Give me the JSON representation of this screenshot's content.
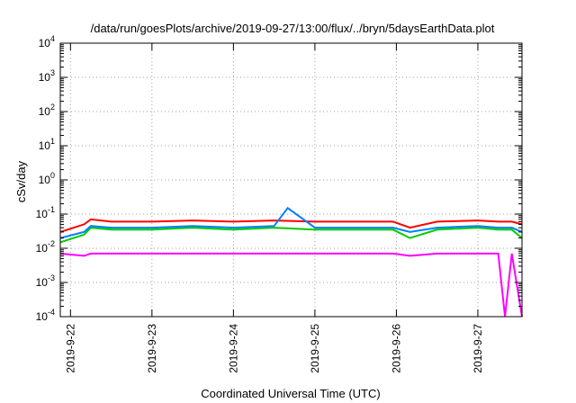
{
  "chart_data": {
    "type": "line",
    "title": "/data/run/goesPlots/archive/2019-09-27/13:00/flux/../bryn/5daysEarthData.plot",
    "xlabel": "Coordinated Universal Time (UTC)",
    "ylabel": "cSv/day",
    "yscale": "log",
    "ylim": [
      0.0001,
      10000
    ],
    "xlim": [
      "2019-09-21 21:00",
      "2019-09-27 13:00"
    ],
    "grid": true,
    "legend": "none",
    "x_ticks": [
      "2019-9-22",
      "2019-9-23",
      "2019-9-24",
      "2019-9-25",
      "2019-9-26",
      "2019-9-27"
    ],
    "y_ticks": [
      {
        "value": 0.0001,
        "base": "10",
        "exp": "-4"
      },
      {
        "value": 0.001,
        "base": "10",
        "exp": "-3"
      },
      {
        "value": 0.01,
        "base": "10",
        "exp": "-2"
      },
      {
        "value": 0.1,
        "base": "10",
        "exp": "-1"
      },
      {
        "value": 1,
        "base": "10",
        "exp": "0"
      },
      {
        "value": 10,
        "base": "10",
        "exp": "1"
      },
      {
        "value": 100,
        "base": "10",
        "exp": "2"
      },
      {
        "value": 1000,
        "base": "10",
        "exp": "3"
      },
      {
        "value": 10000,
        "base": "10",
        "exp": "4"
      }
    ],
    "series": [
      {
        "color": "#ff0000",
        "x": [
          "2019-09-21 21:00",
          "2019-09-22 04:00",
          "2019-09-22 06:00",
          "2019-09-22 12:00",
          "2019-09-23 00:00",
          "2019-09-23 12:00",
          "2019-09-24 00:00",
          "2019-09-24 12:00",
          "2019-09-25 00:00",
          "2019-09-25 12:00",
          "2019-09-25 23:00",
          "2019-09-26 04:00",
          "2019-09-26 12:00",
          "2019-09-27 00:00",
          "2019-09-27 06:00",
          "2019-09-27 10:00",
          "2019-09-27 13:00"
        ],
        "values": [
          0.03,
          0.05,
          0.07,
          0.06,
          0.06,
          0.065,
          0.06,
          0.065,
          0.06,
          0.06,
          0.06,
          0.04,
          0.06,
          0.065,
          0.06,
          0.06,
          0.05
        ]
      },
      {
        "color": "#00cc00",
        "x": [
          "2019-09-21 21:00",
          "2019-09-22 04:00",
          "2019-09-22 06:00",
          "2019-09-22 12:00",
          "2019-09-23 00:00",
          "2019-09-23 12:00",
          "2019-09-24 00:00",
          "2019-09-24 12:00",
          "2019-09-25 00:00",
          "2019-09-25 12:00",
          "2019-09-25 23:00",
          "2019-09-26 04:00",
          "2019-09-26 12:00",
          "2019-09-27 00:00",
          "2019-09-27 06:00",
          "2019-09-27 10:00",
          "2019-09-27 13:00"
        ],
        "values": [
          0.015,
          0.025,
          0.04,
          0.035,
          0.035,
          0.04,
          0.035,
          0.04,
          0.035,
          0.035,
          0.035,
          0.02,
          0.035,
          0.04,
          0.035,
          0.035,
          0.02
        ]
      },
      {
        "color": "#0080ff",
        "x": [
          "2019-09-21 21:00",
          "2019-09-22 04:00",
          "2019-09-22 06:00",
          "2019-09-22 12:00",
          "2019-09-23 00:00",
          "2019-09-23 12:00",
          "2019-09-24 00:00",
          "2019-09-24 12:00",
          "2019-09-24 16:00",
          "2019-09-25 00:00",
          "2019-09-25 12:00",
          "2019-09-25 23:00",
          "2019-09-26 04:00",
          "2019-09-26 12:00",
          "2019-09-27 00:00",
          "2019-09-27 06:00",
          "2019-09-27 10:00",
          "2019-09-27 13:00"
        ],
        "values": [
          0.02,
          0.03,
          0.045,
          0.04,
          0.04,
          0.045,
          0.04,
          0.045,
          0.15,
          0.04,
          0.04,
          0.04,
          0.03,
          0.04,
          0.045,
          0.04,
          0.04,
          0.03
        ]
      },
      {
        "color": "#ff00ff",
        "x": [
          "2019-09-21 21:00",
          "2019-09-22 04:00",
          "2019-09-22 06:00",
          "2019-09-22 12:00",
          "2019-09-23 00:00",
          "2019-09-23 12:00",
          "2019-09-24 00:00",
          "2019-09-24 12:00",
          "2019-09-25 00:00",
          "2019-09-25 12:00",
          "2019-09-25 23:00",
          "2019-09-26 04:00",
          "2019-09-26 12:00",
          "2019-09-27 00:00",
          "2019-09-27 06:00",
          "2019-09-27 08:00",
          "2019-09-27 10:00",
          "2019-09-27 13:00"
        ],
        "values": [
          0.007,
          0.006,
          0.007,
          0.007,
          0.007,
          0.007,
          0.007,
          0.007,
          0.007,
          0.007,
          0.007,
          0.006,
          0.007,
          0.007,
          0.007,
          0.0001,
          0.007,
          0.0001
        ]
      }
    ]
  }
}
